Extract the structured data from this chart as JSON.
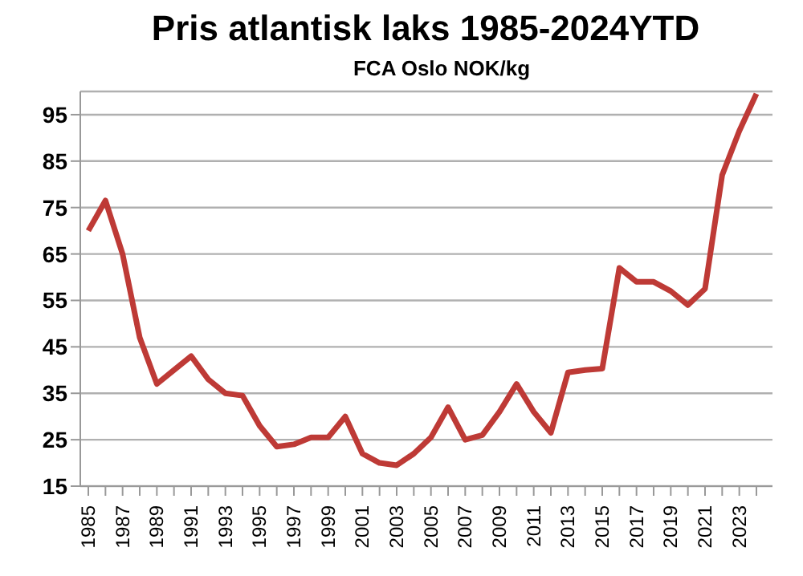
{
  "chart_data": {
    "type": "line",
    "title": "Pris atlantisk laks 1985-2024YTD",
    "subtitle": "FCA Oslo NOK/kg",
    "categories": [
      "1985",
      null,
      "1987",
      null,
      "1989",
      null,
      "1991",
      null,
      "1993",
      null,
      "1995",
      null,
      "1997",
      null,
      "1999",
      null,
      "2001",
      null,
      "2003",
      null,
      "2005",
      null,
      "2007",
      null,
      "2009",
      null,
      "2011",
      null,
      "2013",
      null,
      "2015",
      null,
      "2017",
      null,
      "2019",
      null,
      "2021",
      null,
      "2023",
      null
    ],
    "series": [
      {
        "color": "#be3a36",
        "values": [
          70,
          76.5,
          65,
          47,
          37,
          40,
          43,
          38,
          35,
          34.5,
          28,
          23.5,
          24,
          25.5,
          25.5,
          30,
          22,
          20,
          19.5,
          22,
          25.5,
          32,
          25,
          26,
          31,
          37,
          31,
          26.5,
          39.5,
          40,
          40.3,
          62,
          59,
          59,
          57,
          54,
          57.5,
          82,
          91.5,
          99.5
        ]
      }
    ],
    "ylim": [
      15,
      100
    ],
    "yticks": [
      15,
      25,
      35,
      45,
      55,
      65,
      75,
      85,
      95
    ],
    "grid": "y",
    "marker": "none",
    "line_style": "solid"
  }
}
